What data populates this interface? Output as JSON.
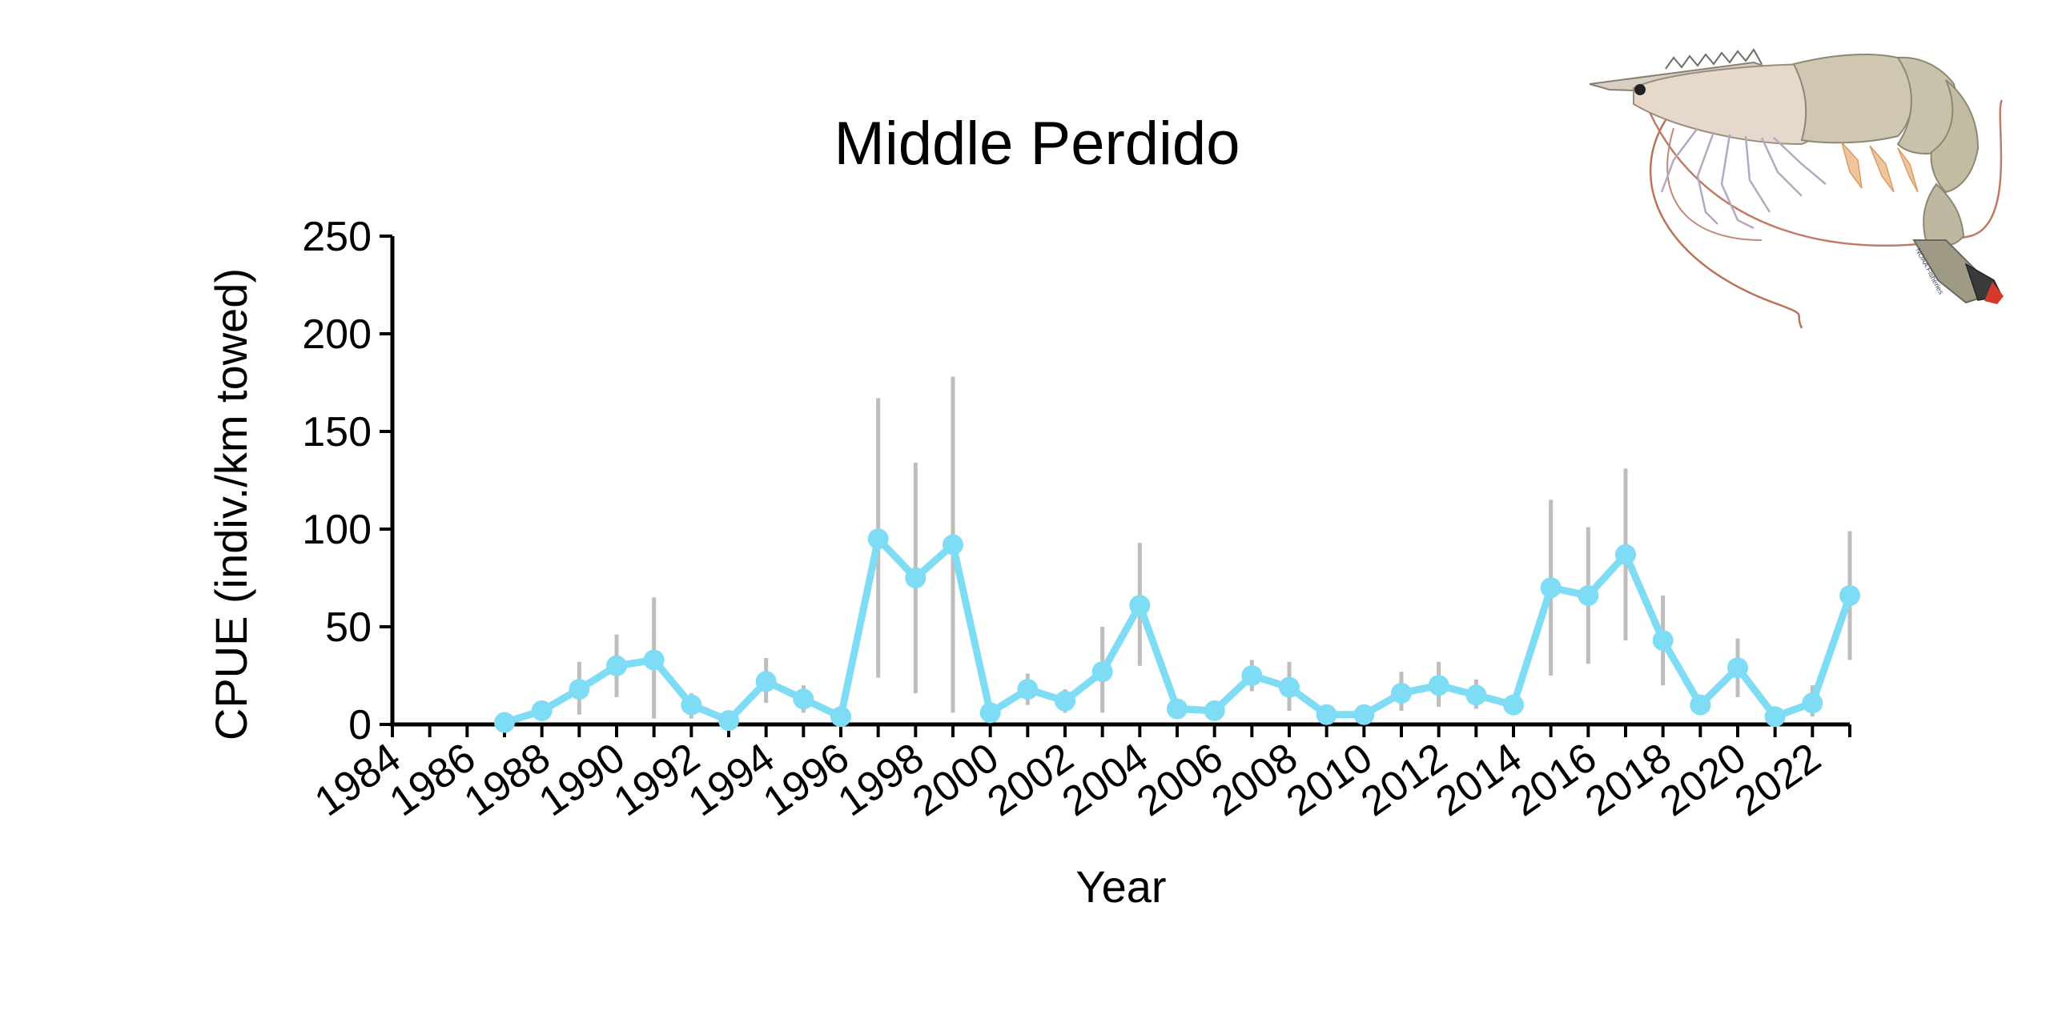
{
  "chart_data": {
    "type": "line",
    "title": "Middle Perdido",
    "xlabel": "Year",
    "ylabel": "CPUE (indiv./km towed)",
    "xlim": [
      1984,
      2023
    ],
    "ylim": [
      0,
      250
    ],
    "y_ticks": [
      0,
      50,
      100,
      150,
      200,
      250
    ],
    "x_tick_labels": [
      "1984",
      "1986",
      "1988",
      "1990",
      "1992",
      "1994",
      "1996",
      "1998",
      "2000",
      "2002",
      "2004",
      "2006",
      "2008",
      "2010",
      "2012",
      "2014",
      "2016",
      "2018",
      "2020",
      "2022"
    ],
    "grid": false,
    "series_color": "#7fdcf5",
    "error_bar_color": "#bdbdbd",
    "series": [
      {
        "x": [
          1987,
          1988,
          1989,
          1990,
          1991,
          1992,
          1993,
          1994,
          1995,
          1996,
          1997,
          1998,
          1999,
          2000,
          2001,
          2002,
          2003,
          2004,
          2005,
          2006,
          2007,
          2008,
          2009,
          2010,
          2011,
          2012,
          2013,
          2014,
          2015,
          2016,
          2017,
          2018,
          2019,
          2020,
          2021,
          2022,
          2023
        ],
        "values": [
          1,
          7,
          18,
          30,
          33,
          10,
          2,
          22,
          13,
          4,
          95,
          75,
          92,
          6,
          18,
          12,
          27,
          61,
          8,
          7,
          25,
          19,
          5,
          5,
          16,
          20,
          15,
          10,
          70,
          66,
          87,
          43,
          10,
          29,
          4,
          11,
          66
        ],
        "err_low": [
          0,
          3,
          5,
          14,
          3,
          3,
          0,
          11,
          6,
          1,
          24,
          16,
          6,
          3,
          10,
          6,
          6,
          30,
          5,
          4,
          17,
          7,
          2,
          2,
          7,
          9,
          8,
          5,
          25,
          31,
          43,
          20,
          5,
          14,
          2,
          4,
          33
        ],
        "err_high": [
          2,
          11,
          32,
          46,
          65,
          16,
          4,
          34,
          20,
          7,
          167,
          134,
          178,
          9,
          26,
          18,
          50,
          93,
          11,
          10,
          33,
          32,
          8,
          8,
          27,
          32,
          23,
          15,
          115,
          101,
          131,
          66,
          15,
          44,
          6,
          20,
          99
        ]
      }
    ]
  },
  "illustration": {
    "icon": "shrimp-icon",
    "credit_text": "NOAA Fisheries"
  }
}
